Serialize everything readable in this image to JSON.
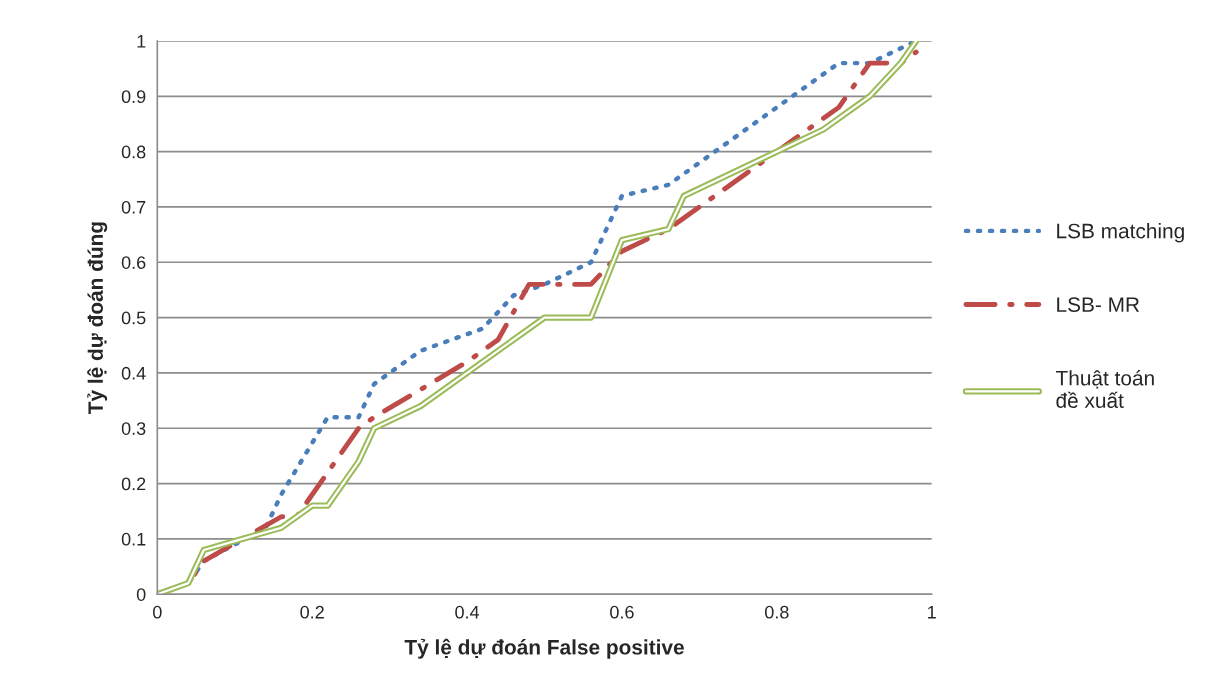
{
  "chart_data": {
    "type": "line",
    "xlabel": "Tỷ lệ dự đoán False positive",
    "ylabel": "Tỷ lệ dự đoán đúng",
    "xlim": [
      0,
      1
    ],
    "xticks": [
      0,
      0.2,
      0.4,
      0.6,
      0.8,
      1
    ],
    "ylim": [
      0,
      1
    ],
    "yticks": [
      0,
      0.1,
      0.2,
      0.3,
      0.4,
      0.5,
      0.6,
      0.7,
      0.8,
      0.9,
      1
    ],
    "grid": "y",
    "legend": "right",
    "marker": "none",
    "series": [
      {
        "name": "LSB matching",
        "color": "#4a7ebb",
        "line_style": "dotted",
        "x": [
          0,
          0.04,
          0.06,
          0.14,
          0.16,
          0.22,
          0.26,
          0.28,
          0.34,
          0.42,
          0.46,
          0.5,
          0.56,
          0.6,
          0.66,
          0.78,
          0.88,
          0.92,
          0.98
        ],
        "values": [
          0,
          0.02,
          0.06,
          0.12,
          0.18,
          0.32,
          0.32,
          0.38,
          0.44,
          0.48,
          0.54,
          0.56,
          0.6,
          0.72,
          0.74,
          0.86,
          0.96,
          0.96,
          1.0
        ]
      },
      {
        "name": "LSB- MR",
        "color": "#be4b48",
        "line_style": "dashdot",
        "x": [
          0,
          0.04,
          0.06,
          0.16,
          0.18,
          0.22,
          0.26,
          0.28,
          0.4,
          0.44,
          0.48,
          0.52,
          0.56,
          0.6,
          0.66,
          0.7,
          0.82,
          0.88,
          0.92,
          0.96,
          0.98
        ],
        "values": [
          0,
          0.02,
          0.06,
          0.14,
          0.14,
          0.22,
          0.3,
          0.32,
          0.42,
          0.46,
          0.56,
          0.56,
          0.56,
          0.62,
          0.66,
          0.7,
          0.82,
          0.88,
          0.96,
          0.96,
          0.98
        ]
      },
      {
        "name": "Thuật toán\nđề xuất",
        "color": "#9bbb59",
        "line_style": "solid",
        "x": [
          0,
          0.04,
          0.06,
          0.16,
          0.2,
          0.22,
          0.26,
          0.28,
          0.34,
          0.5,
          0.56,
          0.6,
          0.66,
          0.68,
          0.86,
          0.9,
          0.92,
          0.96,
          0.98
        ],
        "values": [
          0,
          0.02,
          0.08,
          0.12,
          0.16,
          0.16,
          0.24,
          0.3,
          0.34,
          0.5,
          0.5,
          0.64,
          0.66,
          0.72,
          0.84,
          0.88,
          0.9,
          0.96,
          1.0
        ]
      }
    ]
  }
}
